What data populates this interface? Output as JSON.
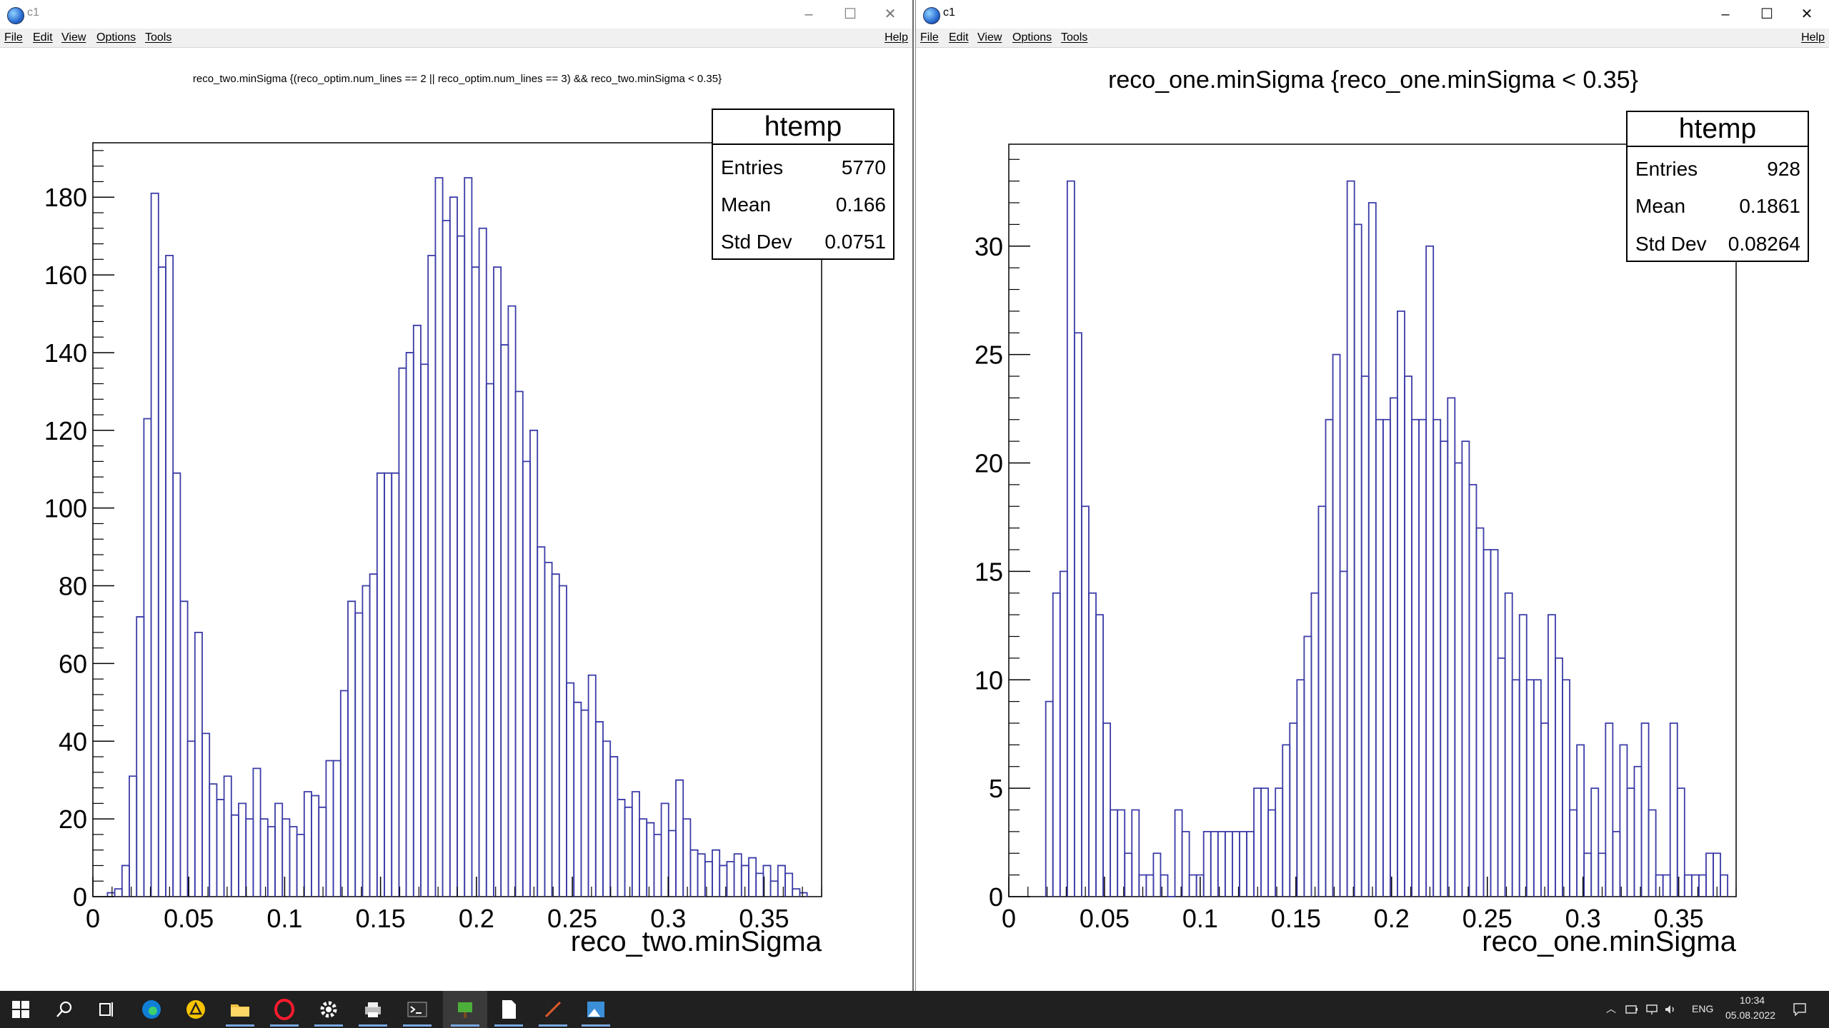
{
  "windows": [
    {
      "title": "c1",
      "menu": [
        "File",
        "Edit",
        "View",
        "Options",
        "Tools"
      ],
      "help": "Help",
      "chart_data": {
        "type": "histogram",
        "title": "reco_two.minSigma {(reco_optim.num_lines == 2 || reco_optim.num_lines == 3)  && reco_two.minSigma < 0.35}",
        "xlabel": "reco_two.minSigma",
        "ylabel": "",
        "xlim": [
          0,
          0.38
        ],
        "ylim": [
          0,
          194
        ],
        "xticks": [
          "0",
          "0.05",
          "0.1",
          "0.15",
          "0.2",
          "0.25",
          "0.3",
          "0.35"
        ],
        "yticks": [
          "0",
          "20",
          "40",
          "60",
          "80",
          "100",
          "120",
          "140",
          "160",
          "180"
        ],
        "bins": {
          "start": 0.0076,
          "width": 0.0038
        },
        "values": [
          1,
          2,
          8,
          31,
          72,
          123,
          181,
          162,
          165,
          109,
          76,
          40,
          68,
          42,
          29,
          25,
          31,
          21,
          24,
          20,
          33,
          20,
          18,
          24,
          20,
          18,
          16,
          27,
          26,
          23,
          35,
          35,
          53,
          76,
          73,
          80,
          83,
          109,
          109,
          109,
          136,
          140,
          147,
          137,
          165,
          185,
          174,
          180,
          170,
          185,
          162,
          172,
          132,
          162,
          142,
          152,
          130,
          112,
          120,
          90,
          86,
          83,
          80,
          55,
          50,
          48,
          57,
          45,
          40,
          36,
          25,
          23,
          27,
          20,
          19,
          16,
          24,
          17,
          30,
          20,
          12,
          11,
          9,
          12,
          8,
          9,
          11,
          8,
          10,
          6,
          8,
          4,
          8,
          6,
          2,
          1
        ],
        "legend": "top-right",
        "stats": {
          "name": "htemp",
          "rows": [
            [
              "Entries",
              "5770"
            ],
            [
              "Mean",
              "0.166"
            ],
            [
              "Std Dev",
              "0.0751"
            ]
          ]
        }
      }
    },
    {
      "title": "c1",
      "menu": [
        "File",
        "Edit",
        "View",
        "Options",
        "Tools"
      ],
      "help": "Help",
      "chart_data": {
        "type": "histogram",
        "title": "reco_one.minSigma {reco_one.minSigma < 0.35}",
        "xlabel": "reco_one.minSigma",
        "ylabel": "",
        "xlim": [
          0,
          0.38
        ],
        "ylim": [
          0,
          34.7
        ],
        "xticks": [
          "0",
          "0.05",
          "0.1",
          "0.15",
          "0.2",
          "0.25",
          "0.3",
          "0.35"
        ],
        "yticks": [
          "0",
          "5",
          "10",
          "15",
          "20",
          "25",
          "30"
        ],
        "bins": {
          "start": 0.0193,
          "width": 0.00375
        },
        "values": [
          9,
          14,
          15,
          33,
          26,
          18,
          14,
          13,
          8,
          4,
          4,
          2,
          4,
          1,
          1,
          2,
          1,
          0,
          4,
          3,
          1,
          1,
          3,
          3,
          3,
          3,
          3,
          3,
          3,
          5,
          5,
          4,
          5,
          7,
          8,
          10,
          12,
          14,
          18,
          22,
          25,
          15,
          33,
          31,
          24,
          32,
          22,
          22,
          23,
          27,
          24,
          22,
          22,
          30,
          22,
          21,
          23,
          20,
          21,
          19,
          17,
          16,
          16,
          11,
          14,
          10,
          13,
          10,
          10,
          8,
          13,
          11,
          10,
          4,
          7,
          2,
          5,
          2,
          8,
          3,
          7,
          5,
          6,
          8,
          4,
          1,
          1,
          8,
          5,
          1,
          1,
          1,
          2,
          2,
          1
        ],
        "legend": "top-right",
        "stats": {
          "name": "htemp",
          "rows": [
            [
              "Entries",
              "928"
            ],
            [
              "Mean",
              "0.1861"
            ],
            [
              "Std Dev",
              "0.08264"
            ]
          ]
        }
      }
    }
  ],
  "taskbar": {
    "icons": [
      "windows-start-icon",
      "search-icon",
      "task-view-icon",
      "edge-browser-icon",
      "norton-icon",
      "file-explorer-icon",
      "opera-icon",
      "settings-gear-icon",
      "printer-icon",
      "terminal-icon",
      "root-app-icon",
      "notepad-icon",
      "xming-icon",
      "photos-icon"
    ],
    "lang": "ENG",
    "time": "10:34",
    "date": "05.08.2022"
  }
}
